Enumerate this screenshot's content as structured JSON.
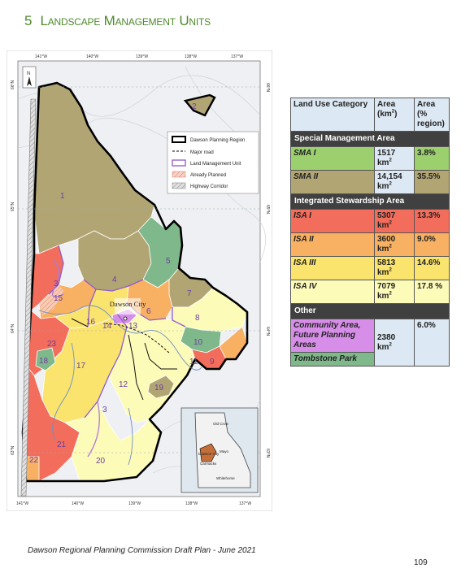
{
  "heading": {
    "number": "5",
    "title": "Landscape Management Units"
  },
  "map": {
    "lon_ticks_top": [
      "141°W",
      "140°W",
      "139°W",
      "138°W",
      "137°W"
    ],
    "lon_ticks_bottom": [
      "141°W",
      "140°W",
      "139°W",
      "138°W",
      "137°W"
    ],
    "lat_ticks_left": [
      "66°N",
      "65°N",
      "64°N",
      "63°N"
    ],
    "lat_ticks_right": [
      "66°N",
      "65°N",
      "64°N",
      "63°N"
    ],
    "north_label": "N",
    "city": "Dawson City",
    "units": [
      "1",
      "2",
      "3",
      "3",
      "4",
      "5",
      "6",
      "7",
      "8",
      "9",
      "10",
      "11",
      "12",
      "13",
      "14",
      "15",
      "16",
      "17",
      "18",
      "19",
      "20",
      "21",
      "22",
      "23"
    ],
    "legend": [
      "Dawson Planning Region",
      "Major road",
      "Land Management Unit",
      "Already Planned",
      "Highway Corridor"
    ],
    "inset_labels": [
      "Old Crow",
      "Dawson City",
      "Mayo",
      "Carmacks",
      "Whitehorse"
    ]
  },
  "table": {
    "headers": [
      "Land Use Category",
      "Area (km²)",
      "Area (% region)"
    ],
    "sections": [
      {
        "title": "Special Management Area",
        "rows": [
          {
            "category": "SMA I",
            "area": "1517 km²",
            "pct": "3.8%",
            "color": "#9ccf6d"
          },
          {
            "category": "SMA II",
            "area": "14,154 km²",
            "pct": "35.5%",
            "color": "#b2a574"
          }
        ]
      },
      {
        "title": "Integrated Stewardship Area",
        "rows": [
          {
            "category": "ISA I",
            "area": "5307 km²",
            "pct": "13.3%",
            "color": "#f26d5b"
          },
          {
            "category": "ISA II",
            "area": "3600 km²",
            "pct": "9.0%",
            "color": "#f8b063"
          },
          {
            "category": "ISA III",
            "area": "5813 km²",
            "pct": "14.6%",
            "color": "#fae46e"
          },
          {
            "category": "ISA IV",
            "area": "7079 km²",
            "pct": "17.8 %",
            "color": "#fdfbb8"
          }
        ]
      },
      {
        "title": "Other",
        "rows": [
          {
            "category": "Community Area, Future Planning Areas",
            "area": "2380 km²",
            "pct": "6.0%",
            "color": "#d78ee8"
          },
          {
            "category": "Tombstone Park",
            "color": "#7fb88a"
          }
        ]
      }
    ]
  },
  "footer": "Dawson Regional Planning Commission Draft Plan - June 2021",
  "page_number": "109"
}
